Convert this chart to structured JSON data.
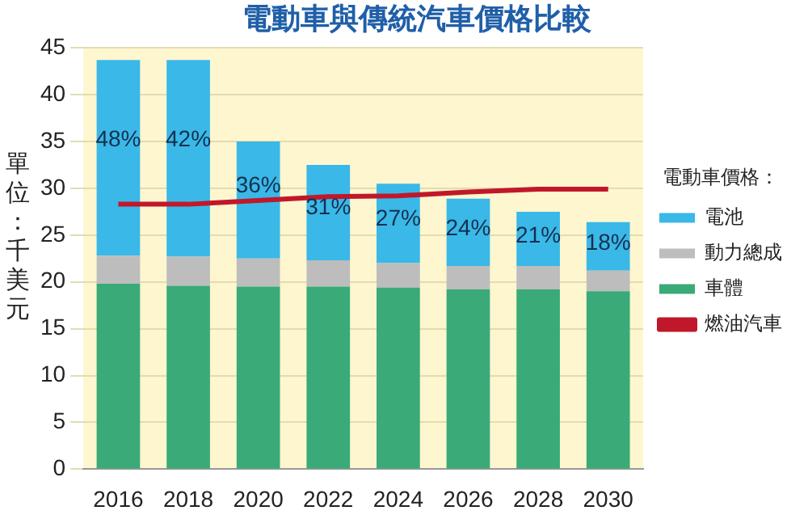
{
  "chart_data": {
    "type": "bar",
    "title": "電動車與傳統汽車價格比較",
    "ylabel": "單位：千美元",
    "legend_title": "電動車價格：",
    "categories": [
      "2016",
      "2018",
      "2020",
      "2022",
      "2024",
      "2026",
      "2028",
      "2030"
    ],
    "stacked": true,
    "series": [
      {
        "name": "車體",
        "color": "#3aaa78",
        "values": [
          19.8,
          19.6,
          19.5,
          19.5,
          19.4,
          19.2,
          19.2,
          19.0
        ]
      },
      {
        "name": "動力總成",
        "color": "#bdbdbd",
        "values": [
          3.0,
          3.1,
          3.0,
          2.8,
          2.6,
          2.5,
          2.5,
          2.2
        ]
      },
      {
        "name": "電池",
        "color": "#3ab8e8",
        "values": [
          20.9,
          21.0,
          12.5,
          10.2,
          8.5,
          7.2,
          5.8,
          5.2
        ]
      },
      {
        "name": "燃油汽車",
        "type": "line",
        "color": "#c0182a",
        "values": [
          28.3,
          28.3,
          28.7,
          29.1,
          29.2,
          29.6,
          29.9,
          29.9
        ]
      }
    ],
    "annotations": [
      "48%",
      "42%",
      "36%",
      "31%",
      "27%",
      "24%",
      "21%",
      "18%"
    ],
    "ylim": [
      0,
      45
    ],
    "yticks": [
      0,
      5,
      10,
      15,
      20,
      25,
      30,
      35,
      40,
      45
    ],
    "grid": "y",
    "legend": "right",
    "marker": "none",
    "line_style": "solid"
  }
}
